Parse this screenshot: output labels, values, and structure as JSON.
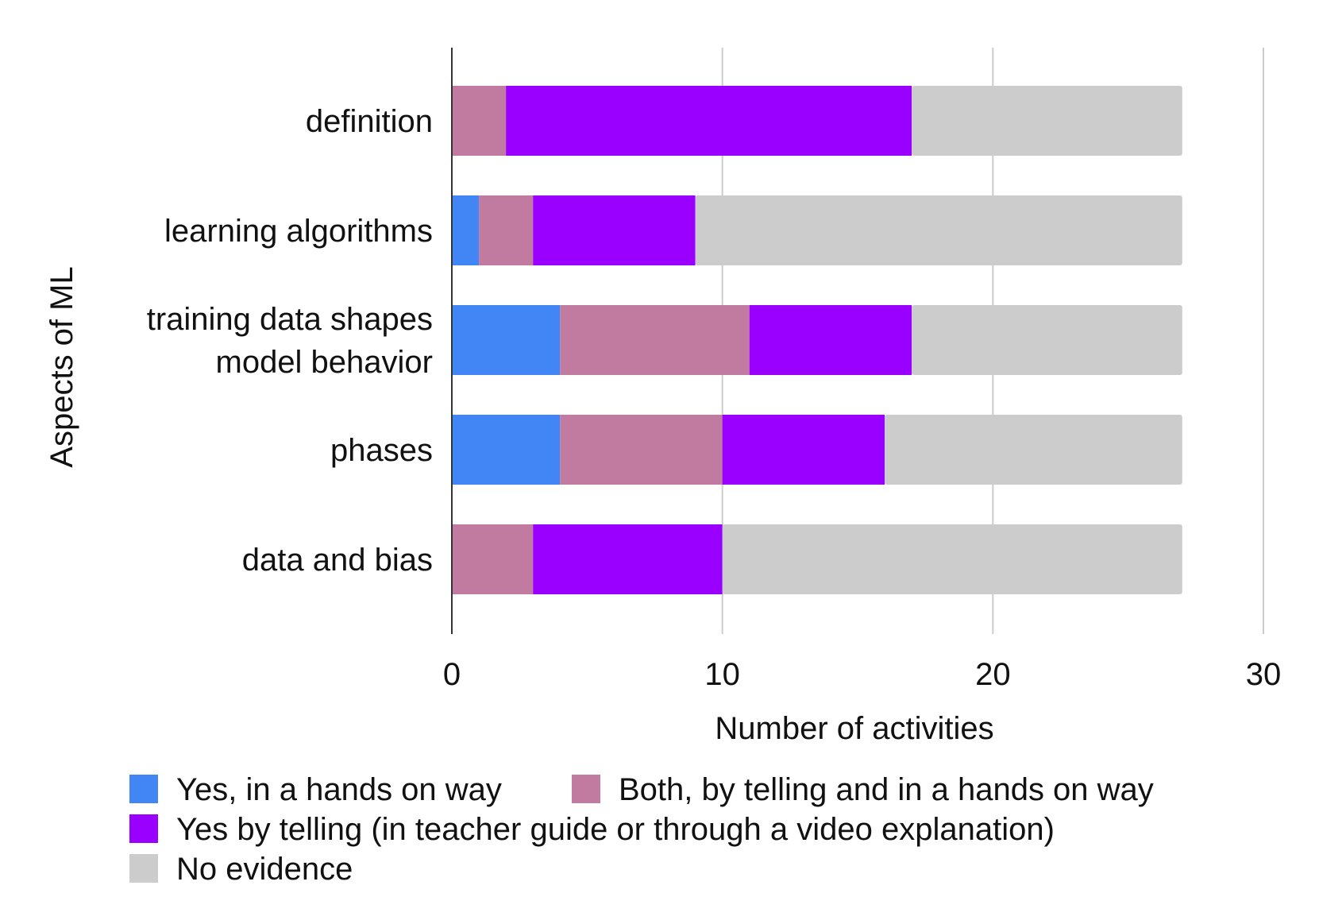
{
  "chart_data": {
    "type": "bar",
    "orientation": "horizontal",
    "stacked": true,
    "title": "",
    "xlabel": "Number of activities",
    "ylabel": "Aspects of ML",
    "categories": [
      [
        "definition"
      ],
      [
        "learning algorithms"
      ],
      [
        "training data shapes",
        "model behavior"
      ],
      [
        "phases"
      ],
      [
        "data and bias"
      ]
    ],
    "series": [
      {
        "name": "Yes, in a hands on way",
        "color": "#4285f4",
        "values": [
          0,
          1,
          4,
          4,
          0
        ]
      },
      {
        "name": "Both, by telling and in a hands on way",
        "color": "#c27ba0",
        "values": [
          2,
          2,
          7,
          6,
          3
        ]
      },
      {
        "name": "Yes by telling (in teacher guide or through a video explanation)",
        "color": "#9900ff",
        "values": [
          15,
          6,
          6,
          6,
          7
        ]
      },
      {
        "name": "No evidence",
        "color": "#cccccc",
        "values": [
          10,
          18,
          10,
          11,
          17
        ]
      }
    ],
    "xlim": [
      0,
      30
    ],
    "xticks": [
      "0",
      "10",
      "20",
      "30"
    ],
    "grid": true,
    "legend_position": "bottom"
  }
}
